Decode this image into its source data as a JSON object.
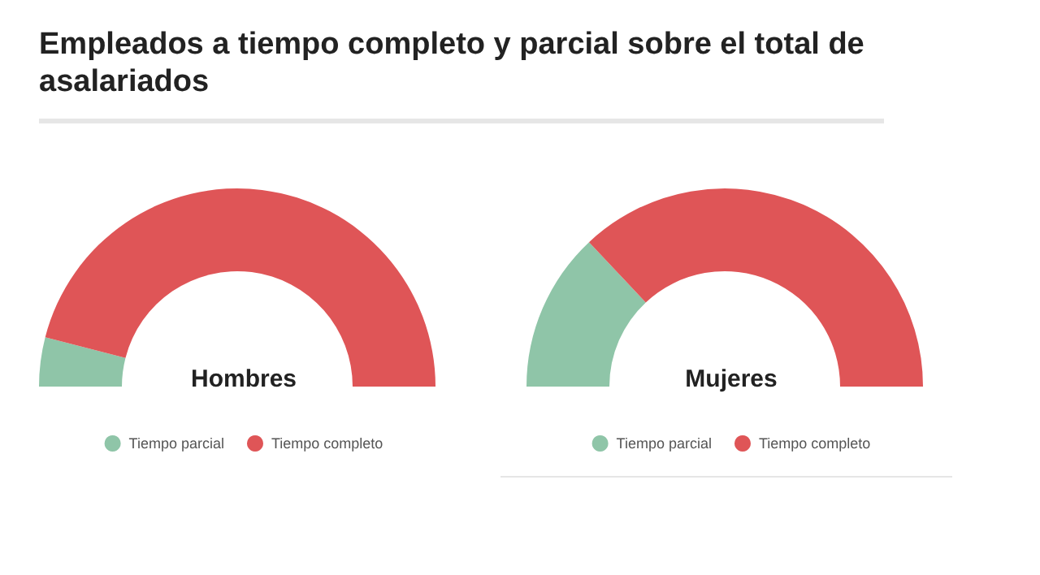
{
  "chart_data": [
    {
      "type": "donut",
      "title": "Empleados a tiempo completo y parcial sobre el total de asalariados",
      "subtitle": "Hombres",
      "categories": [
        "Tiempo parcial",
        "Tiempo completo"
      ],
      "values": [
        8,
        92
      ],
      "colors": [
        "#8fc5a8",
        "#df5557"
      ],
      "legend": "bottom"
    },
    {
      "type": "donut",
      "subtitle": "Mujeres",
      "categories": [
        "Tiempo parcial",
        "Tiempo completo"
      ],
      "values": [
        26,
        74
      ],
      "colors": [
        "#8fc5a8",
        "#df5557"
      ],
      "legend": "bottom"
    }
  ]
}
